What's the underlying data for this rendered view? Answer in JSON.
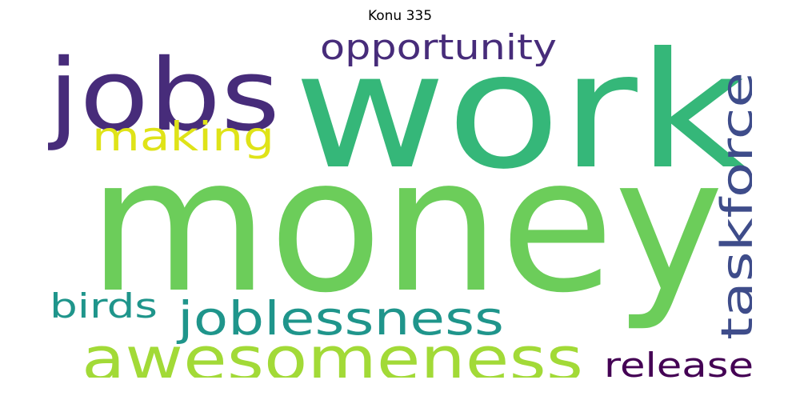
{
  "title": "Konu 335",
  "words": [
    {
      "text": "money",
      "color": "#6ccd5a",
      "orientation": "horizontal"
    },
    {
      "text": "work",
      "color": "#35b779",
      "orientation": "horizontal"
    },
    {
      "text": "jobs",
      "color": "#472c7a",
      "orientation": "horizontal"
    },
    {
      "text": "awesomeness",
      "color": "#a2da37",
      "orientation": "horizontal"
    },
    {
      "text": "joblessness",
      "color": "#1f958b",
      "orientation": "horizontal"
    },
    {
      "text": "taskforce",
      "color": "#3e4c8a",
      "orientation": "vertical"
    },
    {
      "text": "making",
      "color": "#dfe318",
      "orientation": "horizontal"
    },
    {
      "text": "opportunity",
      "color": "#472c7a",
      "orientation": "horizontal"
    },
    {
      "text": "birds",
      "color": "#1f958b",
      "orientation": "horizontal"
    },
    {
      "text": "release",
      "color": "#440154",
      "orientation": "horizontal"
    }
  ]
}
